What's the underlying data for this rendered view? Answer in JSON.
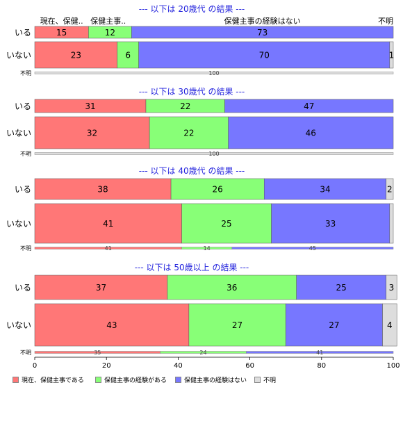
{
  "chart_data": {
    "type": "bar",
    "orientation": "horizontal",
    "stacked": true,
    "xlim": [
      0,
      100
    ],
    "x_ticks": [
      0,
      20,
      40,
      60,
      80,
      100
    ],
    "categories_header": [
      "現在、保健..",
      "保健主事..",
      "保健主事の経験はない",
      "不明"
    ],
    "series": [
      {
        "name": "現在、保健主事である",
        "color": "#ff7777"
      },
      {
        "name": "保健主事の経験がある",
        "color": "#88ff77"
      },
      {
        "name": "保健主事の経験はない",
        "color": "#7777ff"
      },
      {
        "name": "不明",
        "color": "#dddddd"
      }
    ],
    "panels": [
      {
        "title": "--- 以下は 20歳代 の結果 ---",
        "rows": [
          {
            "label": "いる",
            "values": [
              15,
              12,
              73,
              0
            ],
            "data_labels": [
              "15",
              "12",
              "73",
              ""
            ]
          },
          {
            "label": "いない",
            "values": [
              23,
              6,
              70,
              1
            ],
            "data_labels": [
              "23",
              "6",
              "70",
              "1"
            ]
          }
        ],
        "unknown": {
          "label": "不明",
          "values": [
            0,
            0,
            0,
            100
          ],
          "data_labels": [
            "",
            "",
            "",
            "100"
          ]
        }
      },
      {
        "title": "--- 以下は 30歳代 の結果 ---",
        "rows": [
          {
            "label": "いる",
            "values": [
              31,
              22,
              47,
              0
            ],
            "data_labels": [
              "31",
              "22",
              "47",
              ""
            ]
          },
          {
            "label": "いない",
            "values": [
              32,
              22,
              46,
              0
            ],
            "data_labels": [
              "32",
              "22",
              "46",
              ""
            ]
          }
        ],
        "unknown": {
          "label": "不明",
          "values": [
            0,
            0,
            0,
            100
          ],
          "data_labels": [
            "",
            "",
            "",
            "100"
          ]
        }
      },
      {
        "title": "--- 以下は 40歳代 の結果 ---",
        "rows": [
          {
            "label": "いる",
            "values": [
              38,
              26,
              34,
              2
            ],
            "data_labels": [
              "38",
              "26",
              "34",
              "2"
            ]
          },
          {
            "label": "いない",
            "values": [
              41,
              25,
              33,
              1
            ],
            "data_labels": [
              "41",
              "25",
              "33",
              ""
            ]
          }
        ],
        "unknown": {
          "label": "不明",
          "values": [
            41,
            14,
            45,
            0
          ],
          "data_labels": [
            "41",
            "14",
            "45",
            ""
          ]
        }
      },
      {
        "title": "--- 以下は 50歳以上 の結果 ---",
        "rows": [
          {
            "label": "いる",
            "values": [
              37,
              36,
              25,
              3
            ],
            "data_labels": [
              "37",
              "36",
              "25",
              "3"
            ]
          },
          {
            "label": "いない",
            "values": [
              43,
              27,
              27,
              4
            ],
            "data_labels": [
              "43",
              "27",
              "27",
              "4"
            ]
          }
        ],
        "unknown": {
          "label": "不明",
          "values": [
            35,
            24,
            41,
            0
          ],
          "data_labels": [
            "35",
            "24",
            "41",
            ""
          ]
        }
      }
    ],
    "legend_position": "bottom-left"
  }
}
